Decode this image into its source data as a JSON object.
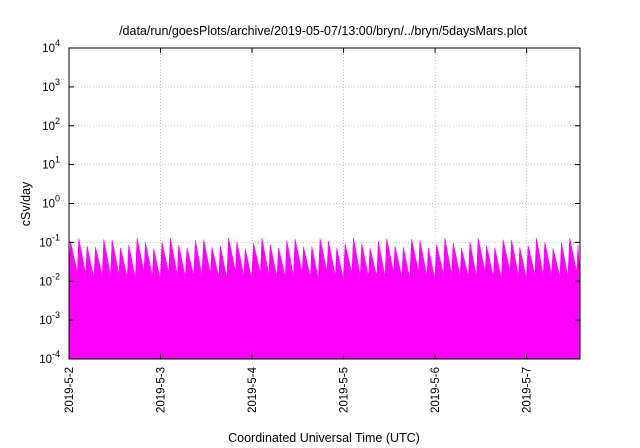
{
  "chart_data": {
    "type": "area",
    "title": "/data/run/goesPlots/archive/2019-05-07/13:00/bryn/../bryn/5daysMars.plot",
    "xlabel": "Coordinated Universal Time (UTC)",
    "ylabel": "cSv/day",
    "yscale": "log",
    "ylim": [
      0.0001,
      10000
    ],
    "xlim": [
      "2019-05-02",
      "2019-05-07T14:00"
    ],
    "grid": true,
    "legend": "none",
    "x_ticks": [
      "2019-5-2",
      "2019-5-3",
      "2019-5-4",
      "2019-5-5",
      "2019-5-6",
      "2019-5-7"
    ],
    "y_ticks": [
      {
        "base": "10",
        "exp": "-4"
      },
      {
        "base": "10",
        "exp": "-3"
      },
      {
        "base": "10",
        "exp": "-2"
      },
      {
        "base": "10",
        "exp": "-1"
      },
      {
        "base": "10",
        "exp": "0"
      },
      {
        "base": "10",
        "exp": "1"
      },
      {
        "base": "10",
        "exp": "2"
      },
      {
        "base": "10",
        "exp": "3"
      },
      {
        "base": "10",
        "exp": "4"
      }
    ],
    "series_colors": [
      "#ff00ff",
      "#cc00cc",
      "#8b1a8b",
      "#555555",
      "#00a0a0",
      "#20c0c0",
      "#1e90ff",
      "#0000cd"
    ],
    "oscillation": {
      "cycles_per_day": 11,
      "peak_range": [
        0.07,
        0.13
      ],
      "trough_range": [
        0.0009,
        0.0018
      ]
    }
  }
}
